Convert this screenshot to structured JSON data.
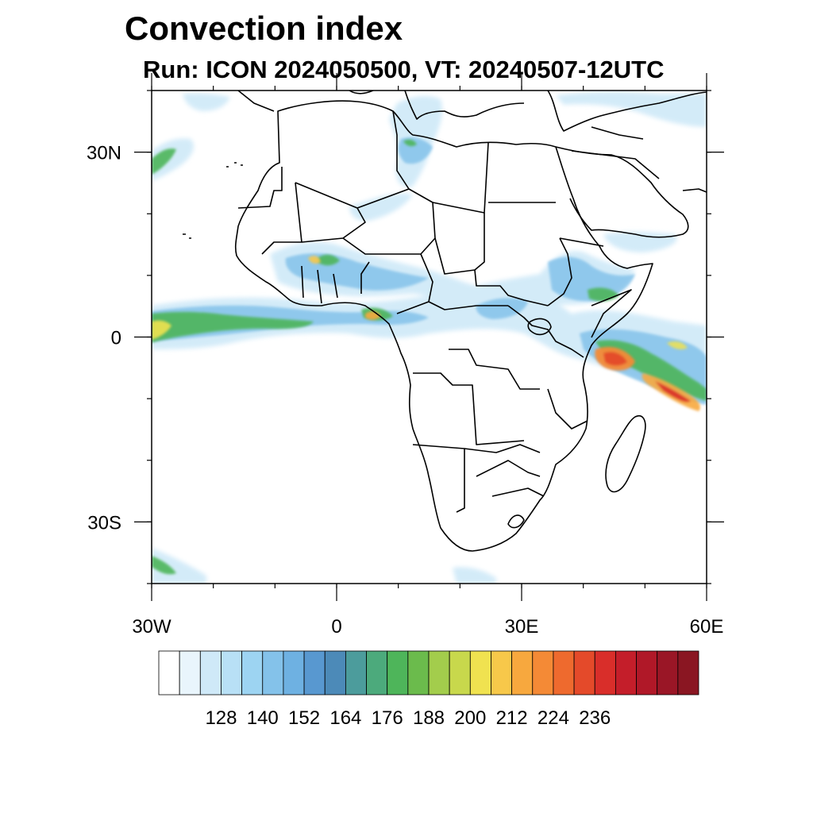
{
  "title": "Convection index",
  "subtitle": "Run: ICON 2024050500,  VT: 20240507-12UTC",
  "map": {
    "lon_range": [
      -30,
      60
    ],
    "lat_range": [
      -40,
      40
    ],
    "lon_ticks": [
      {
        "value": -30,
        "label": "30W"
      },
      {
        "value": 0,
        "label": "0"
      },
      {
        "value": 30,
        "label": "30E"
      },
      {
        "value": 60,
        "label": "60E"
      }
    ],
    "lat_ticks": [
      {
        "value": 30,
        "label": "30N"
      },
      {
        "value": 0,
        "label": "0"
      },
      {
        "value": -30,
        "label": "30S"
      }
    ],
    "minor_lon_step": 10,
    "minor_lat_step": 10
  },
  "colorbar": {
    "colors": [
      "#ffffff",
      "#e9f5fc",
      "#cfe9f8",
      "#b8e0f6",
      "#9dd4f2",
      "#84c2ea",
      "#6eb1e2",
      "#5898d0",
      "#4c8ab8",
      "#4c9c9c",
      "#4caa7c",
      "#4eb55a",
      "#6bbb4c",
      "#a3cd4c",
      "#c8d84c",
      "#f0e250",
      "#f7c84a",
      "#f7a83e",
      "#f48a36",
      "#ee6a2e",
      "#e44a2a",
      "#d92e2a",
      "#c41e2a",
      "#b01828",
      "#9a1626",
      "#8a1622"
    ],
    "labels": [
      "128",
      "140",
      "152",
      "164",
      "176",
      "188",
      "200",
      "212",
      "224",
      "236"
    ],
    "label_slots": [
      2,
      4,
      6,
      8,
      10,
      12,
      14,
      16,
      18,
      20
    ]
  }
}
